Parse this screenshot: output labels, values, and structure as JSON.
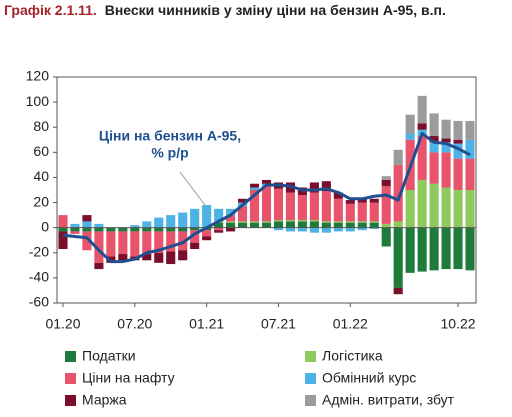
{
  "chart_data": {
    "type": "bar",
    "figure_label": "Графік 2.1.11.",
    "title": "Внески чинників у зміну ціни на бензин А-95, в.п.",
    "annotation": [
      "Ціни на бензин А-95,",
      "% р/р"
    ],
    "stacked": true,
    "categories": [
      "01.20",
      null,
      null,
      null,
      null,
      null,
      "07.20",
      null,
      null,
      null,
      null,
      null,
      "01.21",
      null,
      null,
      null,
      null,
      null,
      "07.21",
      null,
      null,
      null,
      null,
      null,
      "01.22",
      null,
      null,
      null,
      null,
      null,
      null,
      null,
      null,
      "10.22",
      null
    ],
    "series": [
      {
        "name": "Податки",
        "color": "#1e7b3c",
        "values": [
          -3,
          -3,
          -3,
          -3,
          -3,
          -3,
          -3,
          -3,
          -3,
          -3,
          -3,
          -2,
          -2,
          4,
          4,
          4,
          4,
          4,
          5,
          5,
          5,
          5,
          4,
          4,
          4,
          4,
          4,
          -15,
          -48,
          -36,
          -35,
          -34,
          -33,
          -33,
          -34
        ]
      },
      {
        "name": "Логістика",
        "color": "#8dc95c",
        "values": [
          0,
          0,
          0,
          0,
          0,
          0,
          0,
          0,
          0,
          0,
          0,
          0,
          0,
          1,
          1,
          1,
          1,
          1,
          1,
          1,
          1,
          1,
          1,
          1,
          1,
          1,
          1,
          3,
          5,
          30,
          38,
          35,
          32,
          30,
          30
        ]
      },
      {
        "name": "Ціни на нафту",
        "color": "#e8546c",
        "values": [
          10,
          -2,
          -15,
          -25,
          -20,
          -18,
          -20,
          -18,
          -17,
          -16,
          -15,
          -10,
          -5,
          -2,
          5,
          12,
          25,
          28,
          25,
          22,
          20,
          22,
          24,
          18,
          14,
          15,
          15,
          30,
          45,
          40,
          35,
          25,
          28,
          25,
          25
        ]
      },
      {
        "name": "Обмінний курс",
        "color": "#4db3e6",
        "values": [
          0,
          3,
          5,
          3,
          0,
          0,
          2,
          5,
          8,
          10,
          12,
          15,
          18,
          10,
          5,
          3,
          2,
          2,
          -2,
          -3,
          -3,
          -4,
          -4,
          -3,
          -3,
          -2,
          -1,
          0,
          0,
          5,
          5,
          8,
          8,
          12,
          15
        ]
      },
      {
        "name": "Маржа",
        "color": "#7a0f2c",
        "values": [
          -14,
          0,
          5,
          -5,
          -5,
          -5,
          -3,
          -5,
          -8,
          -10,
          -8,
          -5,
          -3,
          -2,
          -3,
          3,
          3,
          3,
          5,
          8,
          6,
          8,
          8,
          5,
          3,
          3,
          3,
          5,
          -5,
          0,
          5,
          5,
          3,
          3,
          0
        ]
      },
      {
        "name": "Адмін. витрати, збут",
        "color": "#9b9b9b",
        "values": [
          0,
          0,
          0,
          0,
          0,
          0,
          0,
          0,
          0,
          0,
          0,
          0,
          0,
          0,
          0,
          0,
          0,
          0,
          0,
          0,
          0,
          0,
          0,
          0,
          0,
          0,
          0,
          3,
          12,
          15,
          22,
          18,
          15,
          15,
          15
        ]
      }
    ],
    "line": {
      "color": "#1f4f8f",
      "values": [
        -6,
        -7,
        -8,
        -18,
        -27,
        -27,
        -25,
        -20,
        -18,
        -15,
        -12,
        -5,
        0,
        5,
        10,
        18,
        26,
        34,
        34,
        33,
        30,
        30,
        31,
        28,
        23,
        23,
        25,
        26,
        22,
        48,
        75,
        68,
        67,
        63,
        58
      ]
    },
    "ylim": [
      -60,
      120
    ],
    "yticks": [
      -60,
      -40,
      -20,
      0,
      20,
      40,
      60,
      80,
      100,
      120
    ],
    "grid": false
  }
}
